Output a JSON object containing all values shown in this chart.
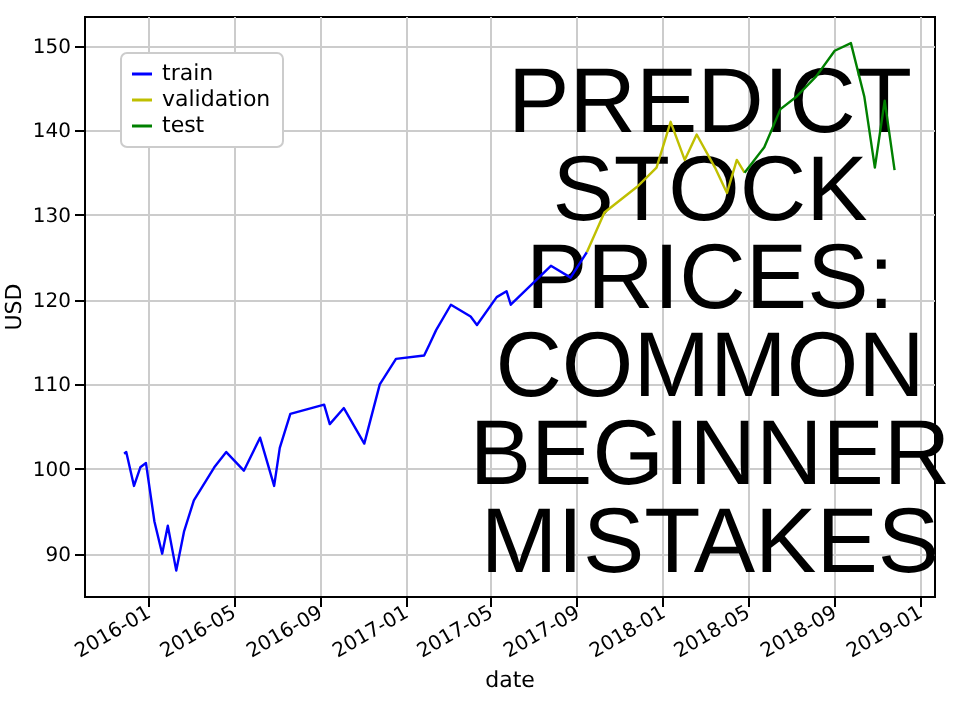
{
  "chart_data": {
    "type": "line",
    "xlabel": "date",
    "ylabel": "USD",
    "annotations": [
      "PREDICT STOCK PRICES: COMMON BEGINNER MISTAKES"
    ],
    "xlim": [
      "2015-10-02",
      "2019-01-21"
    ],
    "xticks": [
      "2016-01",
      "2016-05",
      "2016-09",
      "2017-01",
      "2017-05",
      "2017-09",
      "2018-01",
      "2018-05",
      "2018-09",
      "2019-01"
    ],
    "ylim": [
      85,
      153.5
    ],
    "yticks": [
      90,
      100,
      110,
      120,
      130,
      140,
      150
    ],
    "grid": true,
    "legend": "top left",
    "marker": "none",
    "line_style": "solid",
    "series": [
      {
        "name": "train",
        "color": "#0000ff",
        "x": [
          "2015-11-28",
          "2015-12-01",
          "2015-12-12",
          "2015-12-21",
          "2015-12-29",
          "2016-01-10",
          "2016-01-21",
          "2016-01-29",
          "2016-02-10",
          "2016-02-21",
          "2016-03-06",
          "2016-04-04",
          "2016-04-21",
          "2016-05-16",
          "2016-06-08",
          "2016-06-28",
          "2016-07-06",
          "2016-07-21",
          "2016-09-07",
          "2016-09-15",
          "2016-10-05",
          "2016-11-03",
          "2016-11-25",
          "2016-12-18",
          "2017-01-27",
          "2017-02-04",
          "2017-02-13",
          "2017-03-06",
          "2017-04-03",
          "2017-04-12",
          "2017-05-10",
          "2017-05-24",
          "2017-05-30",
          "2017-07-26",
          "2017-08-23",
          "2017-09-15"
        ],
        "values": [
          101.8,
          102,
          98,
          100.2,
          100.7,
          93.8,
          90,
          93.3,
          88,
          92.6,
          96.3,
          100.2,
          102,
          99.8,
          103.7,
          98,
          102.5,
          106.5,
          107.6,
          105.3,
          107.2,
          103,
          110,
          113,
          113.4,
          114.8,
          116.4,
          119.4,
          118,
          117,
          120.3,
          121,
          119.4,
          124,
          122.6,
          125.6
        ]
      },
      {
        "name": "validation",
        "color": "#bfbf00",
        "x": [
          "2017-09-15",
          "2017-10-10",
          "2017-11-25",
          "2017-12-23",
          "2018-01-12",
          "2018-02-01",
          "2018-02-18",
          "2018-03-16",
          "2018-04-02",
          "2018-04-16",
          "2018-04-27"
        ],
        "values": [
          125.6,
          130.3,
          133.3,
          135.6,
          141,
          136.5,
          139.5,
          135.6,
          132.6,
          136.5,
          135
        ]
      },
      {
        "name": "test",
        "color": "#008000",
        "x": [
          "2018-04-27",
          "2018-05-25",
          "2018-06-17",
          "2018-07-10",
          "2018-08-07",
          "2018-09-02",
          "2018-09-25",
          "2018-10-14",
          "2018-10-29",
          "2018-11-12",
          "2018-11-26"
        ],
        "values": [
          135,
          138,
          142.5,
          144,
          146.4,
          149.4,
          150.3,
          144,
          135.6,
          143.5,
          135.3
        ]
      }
    ]
  }
}
